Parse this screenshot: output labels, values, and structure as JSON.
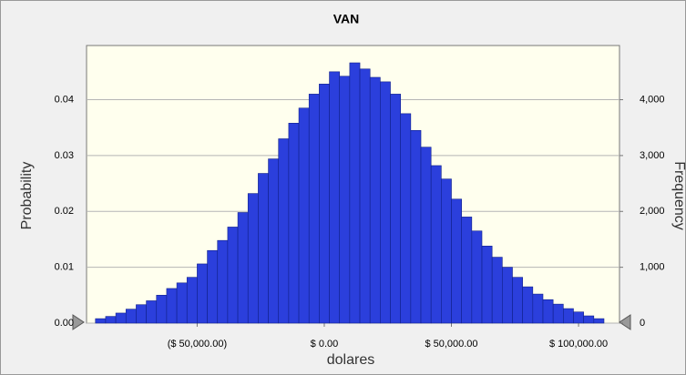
{
  "chart_data": {
    "type": "histogram",
    "title": "VAN",
    "xlabel": "dolares",
    "ylabel": "Probability",
    "y2label": "Frequency",
    "bins": [
      -90000,
      -86000,
      -82000,
      -78000,
      -74000,
      -70000,
      -66000,
      -62000,
      -58000,
      -54000,
      -50000,
      -46000,
      -42000,
      -38000,
      -34000,
      -30000,
      -26000,
      -22000,
      -18000,
      -14000,
      -10000,
      -6000,
      -2000,
      2000,
      6000,
      10000,
      14000,
      18000,
      22000,
      26000,
      30000,
      34000,
      38000,
      42000,
      46000,
      50000,
      54000,
      58000,
      62000,
      66000,
      70000,
      74000,
      78000,
      82000,
      86000,
      90000,
      94000,
      98000,
      102000,
      106000,
      110000
    ],
    "values": [
      0.0008,
      0.0012,
      0.0018,
      0.0025,
      0.0033,
      0.004,
      0.005,
      0.0062,
      0.0072,
      0.0082,
      0.0106,
      0.013,
      0.0148,
      0.0172,
      0.0198,
      0.0232,
      0.0268,
      0.0294,
      0.033,
      0.0358,
      0.0385,
      0.041,
      0.0428,
      0.045,
      0.0442,
      0.0466,
      0.0455,
      0.044,
      0.0432,
      0.041,
      0.0375,
      0.0345,
      0.0315,
      0.0282,
      0.0258,
      0.0222,
      0.019,
      0.0165,
      0.0138,
      0.0118,
      0.01,
      0.0082,
      0.0065,
      0.0052,
      0.0042,
      0.0034,
      0.0026,
      0.002,
      0.0013,
      0.0008
    ],
    "color": "#2b3fdc",
    "xlim": [
      -93500,
      116100
    ],
    "xticks": [
      {
        "value": -50000,
        "label": "($ 50,000.00)"
      },
      {
        "value": 0,
        "label": "$ 0.00"
      },
      {
        "value": 50000,
        "label": "$ 50,000.00"
      },
      {
        "value": 100000,
        "label": "$ 100,000.00"
      }
    ],
    "ylim": [
      0,
      0.0497
    ],
    "yticks": [
      {
        "value": 0,
        "label": "0.00"
      },
      0.01,
      0.02,
      0.03,
      0.04
    ],
    "y2lim": [
      0,
      4970
    ],
    "y2ticks": [
      0,
      {
        "value": 1000,
        "label": "1,000"
      },
      {
        "value": 2000,
        "label": "2,000"
      },
      {
        "value": 3000,
        "label": "3,000"
      },
      {
        "value": 4000,
        "label": "4,000"
      }
    ],
    "grid": true
  }
}
